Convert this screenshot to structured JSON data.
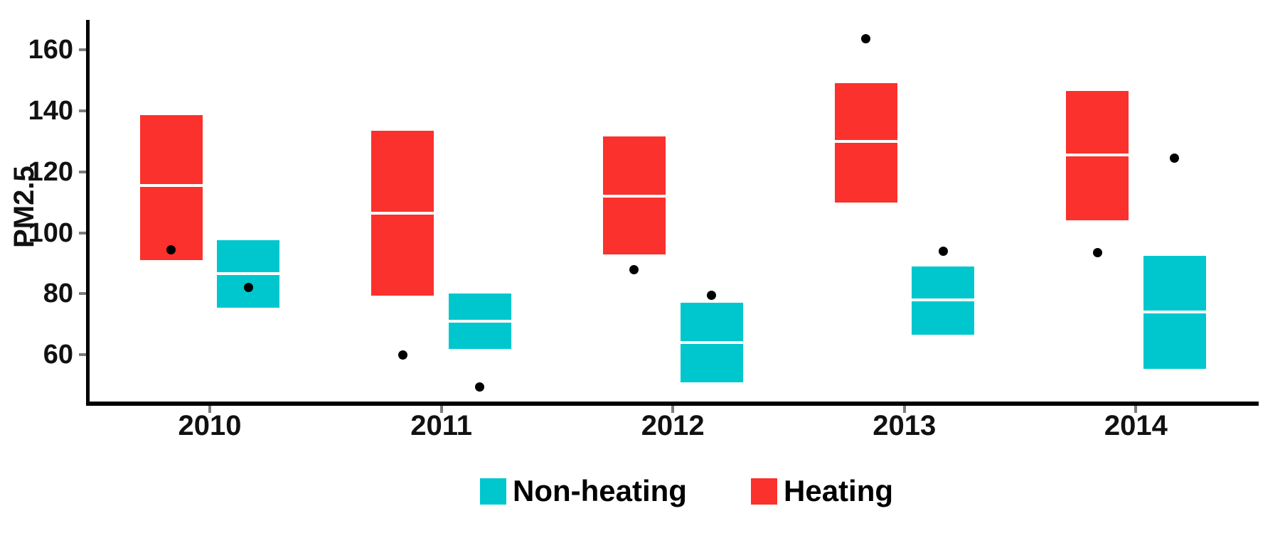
{
  "accent_colors": {
    "heating_red": "#FB312D",
    "nonheating_cyan": "#00C7CE",
    "axis_black": "#000000",
    "tick_gray": "#7c7c7c",
    "median_white": "#ffffff",
    "point_black": "#000000"
  },
  "legend": {
    "items": [
      {
        "id": "nonheating",
        "label": "Non-heating",
        "color": "#00C7CE"
      },
      {
        "id": "heating",
        "label": "Heating",
        "color": "#FB312D"
      }
    ]
  },
  "chart_data": {
    "type": "crossbar-boxplot",
    "title": "",
    "xlabel": "",
    "ylabel": "PM2.5",
    "categories": [
      "2010",
      "2011",
      "2012",
      "2013",
      "2014"
    ],
    "y_ticks": [
      60,
      80,
      100,
      120,
      140,
      160
    ],
    "ylim": [
      44,
      169
    ],
    "grid": false,
    "legend_position": "bottom",
    "series": [
      {
        "name": "Heating",
        "color": "#FB312D",
        "boxes": [
          {
            "year": "2010",
            "low": 91,
            "mid": 115.5,
            "high": 138.5,
            "point": 94.5
          },
          {
            "year": "2011",
            "low": 79.5,
            "mid": 106.5,
            "high": 133.5,
            "point": 60
          },
          {
            "year": "2012",
            "low": 93,
            "mid": 112,
            "high": 131.5,
            "point": 88
          },
          {
            "year": "2013",
            "low": 110,
            "mid": 130,
            "high": 149,
            "point": 163.5
          },
          {
            "year": "2014",
            "low": 104,
            "mid": 125.5,
            "high": 146.5,
            "point": 93.5
          }
        ]
      },
      {
        "name": "Non-heating",
        "color": "#00C7CE",
        "boxes": [
          {
            "year": "2010",
            "low": 75.5,
            "mid": 86.5,
            "high": 97.5,
            "point": 82
          },
          {
            "year": "2011",
            "low": 62,
            "mid": 71,
            "high": 80,
            "point": 49.5
          },
          {
            "year": "2012",
            "low": 51,
            "mid": 64,
            "high": 77,
            "point": 79.5
          },
          {
            "year": "2013",
            "low": 66.5,
            "mid": 78,
            "high": 89,
            "point": 94
          },
          {
            "year": "2014",
            "low": 55.5,
            "mid": 74,
            "high": 92.5,
            "point": 124.5
          }
        ]
      }
    ]
  }
}
